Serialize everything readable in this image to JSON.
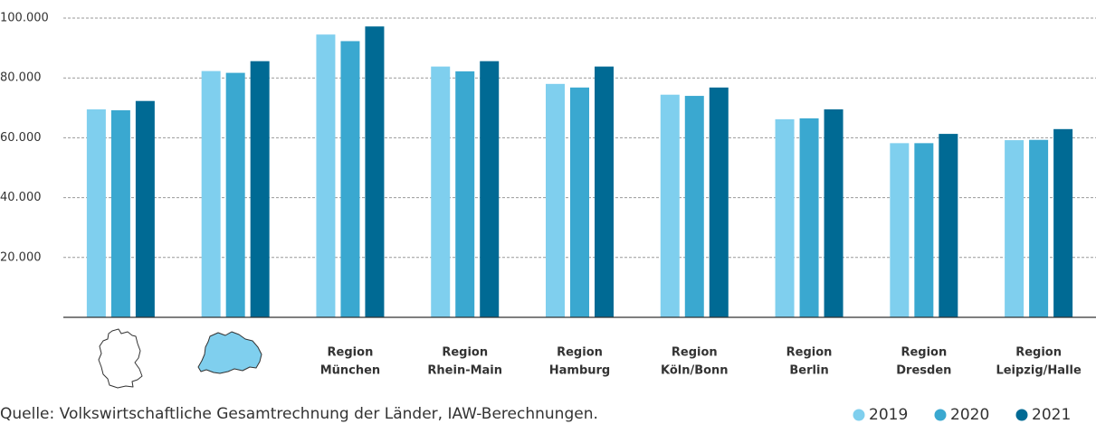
{
  "chart_data": {
    "type": "bar",
    "source": "Quelle: Volkswirtschaftliche Gesamtrechnung der Länder, IAW-Berechnungen.",
    "categories": [
      null,
      null,
      [
        "Region",
        "München"
      ],
      [
        "Region",
        "Rhein-Main"
      ],
      [
        "Region",
        "Hamburg"
      ],
      [
        "Region",
        "Köln/Bonn"
      ],
      [
        "Region",
        "Berlin"
      ],
      [
        "Region",
        "Dresden"
      ],
      [
        "Region",
        "Leipzig/Halle"
      ]
    ],
    "series": [
      {
        "name": "2019",
        "color": "#7fcfee",
        "values": [
          69500,
          82300,
          94500,
          83800,
          78000,
          74400,
          66200,
          58200,
          59200
        ]
      },
      {
        "name": "2020",
        "color": "#3aa8d0",
        "values": [
          69200,
          81700,
          92300,
          82200,
          76800,
          74000,
          66500,
          58200,
          59300
        ]
      },
      {
        "name": "2021",
        "color": "#006a94",
        "values": [
          72300,
          85600,
          97200,
          85600,
          83800,
          76800,
          69500,
          61300,
          62900
        ]
      }
    ],
    "ylim": [
      0,
      100000
    ],
    "yticks": [
      {
        "value": 20000,
        "label": "20.000"
      },
      {
        "value": 40000,
        "label": "40.000"
      },
      {
        "value": 60000,
        "label": "60.000"
      },
      {
        "value": 80000,
        "label": "80.000"
      },
      {
        "value": 100000,
        "label": "100.000"
      }
    ],
    "grid": true,
    "legend": "bottom-right"
  }
}
